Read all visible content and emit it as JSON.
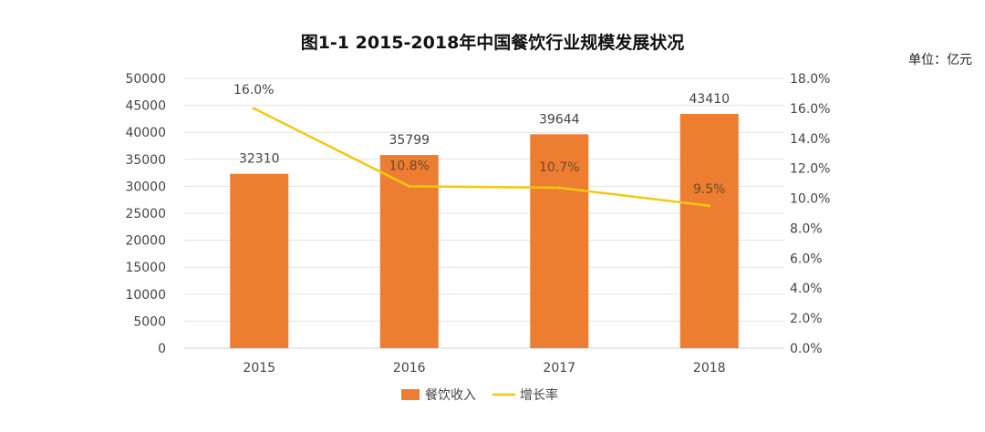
{
  "chart_data": {
    "type": "bar",
    "title": "图1-1 2015-2018年中国餐饮行业规模发展状况",
    "unit_label": "单位：亿元",
    "categories": [
      "2015",
      "2016",
      "2017",
      "2018"
    ],
    "series": [
      {
        "name": "餐饮收入",
        "type": "bar",
        "axis": "left",
        "color": "#ED7D31",
        "values": [
          32310,
          35799,
          39644,
          43410
        ],
        "labels": [
          "32310",
          "35799",
          "39644",
          "43410"
        ]
      },
      {
        "name": "增长率",
        "type": "line",
        "axis": "right",
        "color": "#F2C811",
        "values": [
          16.0,
          10.8,
          10.7,
          9.5
        ],
        "labels": [
          "16.0%",
          "10.8%",
          "10.7%",
          "9.5%"
        ]
      }
    ],
    "y_left": {
      "ylim": [
        0,
        50000
      ],
      "ticks": [
        "0",
        "5000",
        "10000",
        "15000",
        "20000",
        "25000",
        "30000",
        "35000",
        "40000",
        "45000",
        "50000"
      ]
    },
    "y_right": {
      "ylim": [
        0,
        18
      ],
      "ticks": [
        "0.0%",
        "2.0%",
        "4.0%",
        "6.0%",
        "8.0%",
        "10.0%",
        "12.0%",
        "14.0%",
        "16.0%",
        "18.0%"
      ]
    },
    "grid": true,
    "legend_position": "bottom"
  }
}
